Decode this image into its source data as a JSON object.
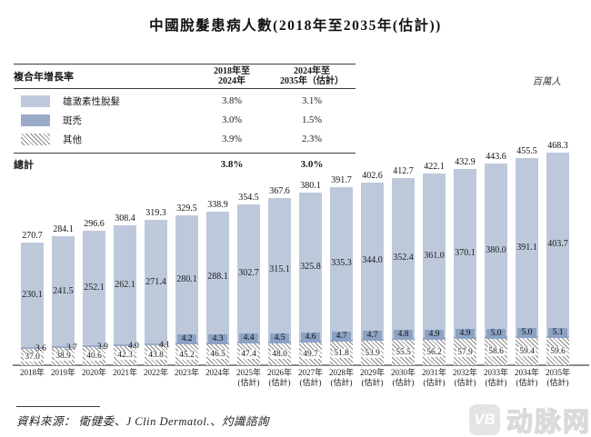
{
  "title": "中國脫髮患病人數(2018年至2035年(估計))",
  "unit_label": "百萬人",
  "table": {
    "title": "複合年增長率",
    "columns": [
      {
        "line1": "2018年至",
        "line2": "2024年"
      },
      {
        "line1": "2024年至",
        "line2": "2035年（估計）"
      }
    ],
    "rows": [
      {
        "label": "雄激素性脫髮",
        "swatch": "androgenetic-swatch",
        "v1": "3.8%",
        "v2": "3.1%"
      },
      {
        "label": "斑禿",
        "swatch": "areata-swatch",
        "v1": "3.0%",
        "v2": "1.5%"
      },
      {
        "label": "其他",
        "swatch": "other-hatch-swatch",
        "v1": "3.9%",
        "v2": "2.3%"
      }
    ],
    "total": {
      "label": "總計",
      "v1": "3.8%",
      "v2": "3.0%"
    }
  },
  "chart_data": {
    "type": "bar",
    "stacked": true,
    "title": "中國脫髮患病人數(2018年至2035年(估計))",
    "ylabel": "百萬人",
    "categories": [
      "2018年",
      "2019年",
      "2020年",
      "2021年",
      "2022年",
      "2023年",
      "2024年",
      "2025年",
      "2026年",
      "2027年",
      "2028年",
      "2029年",
      "2030年",
      "2031年",
      "2032年",
      "2033年",
      "2034年",
      "2035年"
    ],
    "estimated": [
      false,
      false,
      false,
      false,
      false,
      false,
      false,
      true,
      true,
      true,
      true,
      true,
      true,
      true,
      true,
      true,
      true,
      true
    ],
    "estimated_suffix": "(估計)",
    "series": [
      {
        "name": "其他",
        "values": [
          37.0,
          38.9,
          40.6,
          42.3,
          43.8,
          45.2,
          46.5,
          47.4,
          48.0,
          49.7,
          51.8,
          53.9,
          55.5,
          56.2,
          57.9,
          58.6,
          59.4,
          59.6
        ]
      },
      {
        "name": "斑禿",
        "values": [
          3.6,
          3.7,
          3.9,
          4.0,
          4.1,
          4.2,
          4.3,
          4.4,
          4.5,
          4.6,
          4.7,
          4.7,
          4.8,
          4.9,
          4.9,
          5.0,
          5.0,
          5.1
        ]
      },
      {
        "name": "雄激素性脫髮",
        "values": [
          230.1,
          241.5,
          252.1,
          262.1,
          271.4,
          280.1,
          288.1,
          302.7,
          315.1,
          325.8,
          335.3,
          344.0,
          352.4,
          361.0,
          370.1,
          380.0,
          391.1,
          403.7
        ]
      }
    ],
    "totals": [
      270.7,
      284.1,
      296.6,
      308.4,
      319.3,
      329.5,
      338.9,
      354.5,
      367.6,
      380.1,
      391.7,
      402.6,
      412.7,
      422.1,
      432.9,
      443.6,
      455.5,
      468.3
    ],
    "colors": {
      "androgenetic": "#bdc9db",
      "areata": "#9aabc7",
      "areata_label_box": "#8ba2c4",
      "hatch_line": "#8a8a8a",
      "axis": "#8a8a8a"
    },
    "legend_position": "table-top-left",
    "grid": false
  },
  "source": "資料來源： 衛健委、J Clin Dermatol.、灼識諮詢",
  "watermark": {
    "icon_text": "VB",
    "text": "动脉网"
  }
}
